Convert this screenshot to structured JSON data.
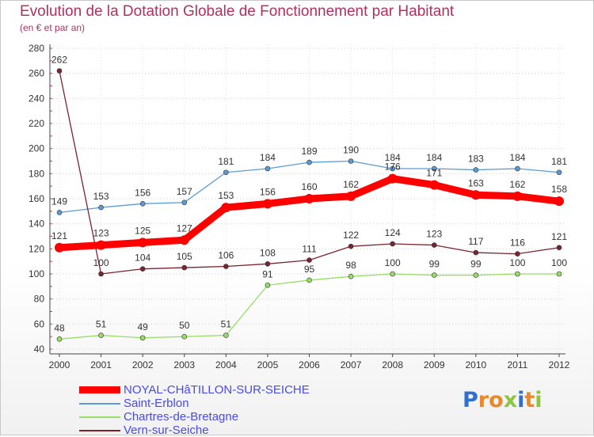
{
  "title": "Evolution de la Dotation Globale de Fonctionnement par Habitant",
  "subtitle": "(en € et par an)",
  "logo": {
    "text": "Proxiti",
    "colors": [
      "#2f6fd0",
      "#e8892a",
      "#e8892a",
      "#8cc63f",
      "#2f6fd0",
      "#e8892a",
      "#8cc63f"
    ]
  },
  "chart_data": {
    "type": "line",
    "title": "Evolution de la Dotation Globale de Fonctionnement par Habitant",
    "subtitle": "(en € et par an)",
    "xlabel": "",
    "ylabel": "",
    "ylim": [
      40,
      280
    ],
    "yticks": [
      40,
      60,
      80,
      100,
      120,
      140,
      160,
      180,
      200,
      220,
      240,
      260,
      280
    ],
    "categories": [
      "2000",
      "2001",
      "2002",
      "2003",
      "2004",
      "2005",
      "2006",
      "2007",
      "2008",
      "2009",
      "2010",
      "2011",
      "2012"
    ],
    "series": [
      {
        "name": "NOYAL-CHâTILLON-SUR-SEICHE",
        "color": "#ff0000",
        "values": [
          121,
          123,
          125,
          127,
          153,
          156,
          160,
          162,
          176,
          171,
          163,
          162,
          158
        ]
      },
      {
        "name": "Saint-Erblon",
        "color": "#5b9bd5",
        "values": [
          149,
          153,
          156,
          157,
          181,
          184,
          189,
          190,
          184,
          184,
          183,
          184,
          181
        ]
      },
      {
        "name": "Chartres-de-Bretagne",
        "color": "#99dd66",
        "values": [
          48,
          51,
          49,
          50,
          51,
          91,
          95,
          98,
          100,
          99,
          99,
          100,
          100
        ]
      },
      {
        "name": "Vern-sur-Seiche",
        "color": "#7a2430",
        "values": [
          262,
          100,
          104,
          105,
          106,
          108,
          111,
          122,
          124,
          123,
          117,
          116,
          121
        ]
      }
    ]
  }
}
